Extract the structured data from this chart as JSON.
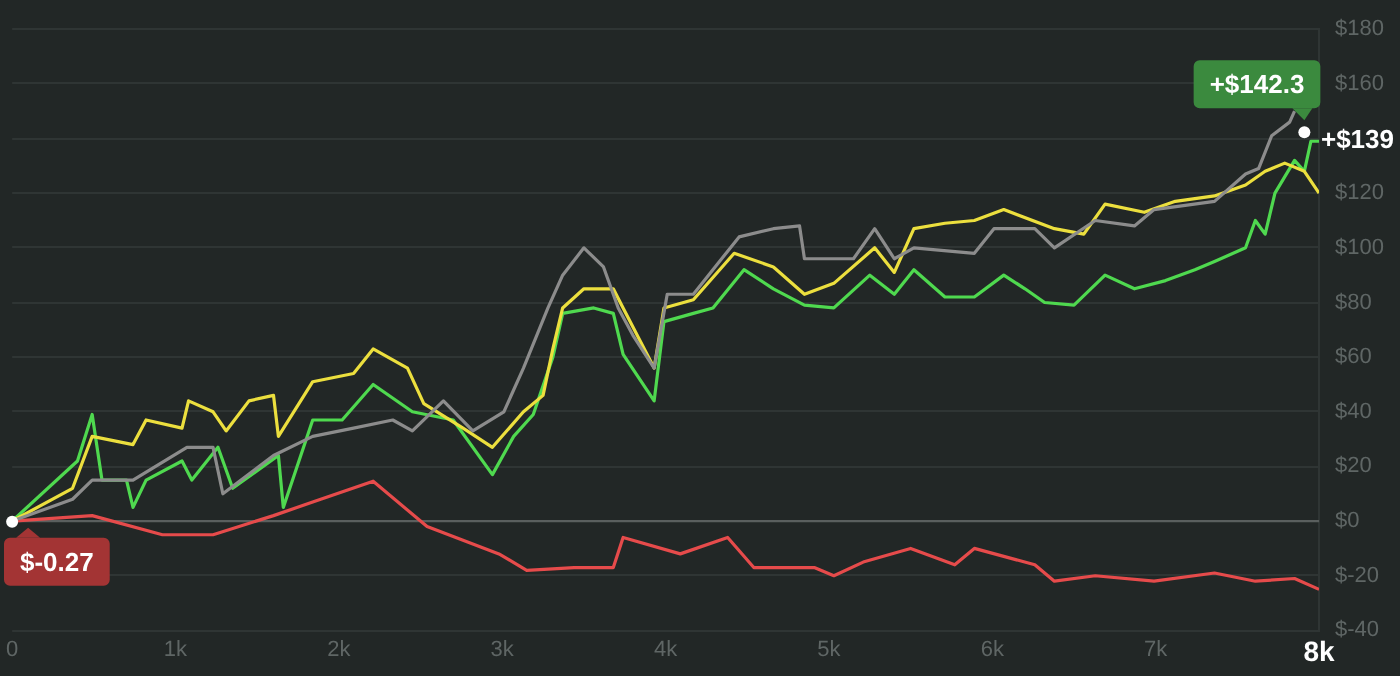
{
  "chart_data": {
    "type": "line",
    "xlim": [
      0,
      8000
    ],
    "xticks": [
      {
        "value": 0,
        "label": "0"
      },
      {
        "value": 1000,
        "label": "1k"
      },
      {
        "value": 2000,
        "label": "2k"
      },
      {
        "value": 3000,
        "label": "3k"
      },
      {
        "value": 4000,
        "label": "4k"
      },
      {
        "value": 5000,
        "label": "5k"
      },
      {
        "value": 6000,
        "label": "6k"
      },
      {
        "value": 7000,
        "label": "7k"
      },
      {
        "value": 8000,
        "label": "8k"
      }
    ],
    "ylim": [
      -40,
      180
    ],
    "yticks": [
      {
        "value": -40,
        "label": "$-40"
      },
      {
        "value": -20,
        "label": "$-20"
      },
      {
        "value": 0,
        "label": "$0"
      },
      {
        "value": 20,
        "label": "$20"
      },
      {
        "value": 40,
        "label": "$40"
      },
      {
        "value": 60,
        "label": "$60"
      },
      {
        "value": 80,
        "label": "$80"
      },
      {
        "value": 100,
        "label": "$100"
      },
      {
        "value": 120,
        "label": "$120"
      },
      {
        "value": 140,
        "label": null
      },
      {
        "value": 160,
        "label": "$160"
      },
      {
        "value": 180,
        "label": "$180"
      }
    ],
    "grid": "y",
    "legend": false,
    "marker": "none",
    "ref_lines": [
      {
        "axis": "y",
        "value": 0,
        "color": "#5a5f5e"
      }
    ],
    "annotations": [
      {
        "text": "+$142.3",
        "x": 7910,
        "y": 142.3
      },
      {
        "text": "+$139",
        "x": 8000,
        "y": 139
      },
      {
        "text": "$-0.27",
        "x": 0,
        "y": -0.27
      }
    ],
    "series": [
      {
        "color": "#8c8c8c",
        "x": [
          0,
          370,
          490,
          740,
          1070,
          1230,
          1290,
          1600,
          1840,
          2090,
          2330,
          2450,
          2640,
          2820,
          3010,
          3130,
          3280,
          3370,
          3500,
          3620,
          3710,
          3800,
          3930,
          4010,
          4170,
          4450,
          4660,
          4820,
          4850,
          5150,
          5280,
          5400,
          5520,
          5890,
          6010,
          6260,
          6380,
          6630,
          6870,
          6990,
          7360,
          7550,
          7630,
          7710,
          7820,
          7850
        ],
        "values": [
          0,
          8,
          15,
          15,
          27,
          27,
          10,
          24,
          31,
          34,
          37,
          33,
          44,
          33,
          40,
          56,
          78,
          90,
          100,
          93,
          78,
          68,
          56,
          83,
          83,
          104,
          107,
          108,
          96,
          96,
          107,
          96,
          100,
          98,
          107,
          107,
          100,
          110,
          108,
          114,
          117,
          127,
          129,
          141,
          146,
          150
        ]
      },
      {
        "color": "#ecdf3e",
        "x": [
          0,
          370,
          490,
          740,
          820,
          1040,
          1080,
          1230,
          1310,
          1450,
          1600,
          1630,
          1840,
          2090,
          2210,
          2420,
          2520,
          2760,
          2940,
          3130,
          3250,
          3310,
          3370,
          3500,
          3680,
          3740,
          3930,
          3990,
          4170,
          4420,
          4660,
          4850,
          5030,
          5280,
          5400,
          5520,
          5710,
          5890,
          6070,
          6380,
          6560,
          6690,
          6930,
          7120,
          7360,
          7550,
          7670,
          7790,
          7910,
          8000
        ],
        "values": [
          0,
          12,
          31,
          28,
          37,
          34,
          44,
          40,
          33,
          44,
          46,
          31,
          51,
          54,
          63,
          56,
          43,
          34,
          27,
          40,
          46,
          63,
          78,
          85,
          85,
          78,
          56,
          78,
          81,
          98,
          93,
          83,
          87,
          100,
          91,
          107,
          109,
          110,
          114,
          107,
          105,
          116,
          113,
          117,
          119,
          123,
          128,
          131,
          128,
          120
        ]
      },
      {
        "color": "#4fd94f",
        "x": [
          0,
          400,
          490,
          550,
          700,
          740,
          820,
          1040,
          1100,
          1260,
          1350,
          1630,
          1660,
          1840,
          2020,
          2210,
          2450,
          2700,
          2940,
          3070,
          3190,
          3310,
          3370,
          3560,
          3680,
          3740,
          3930,
          3990,
          4170,
          4290,
          4480,
          4660,
          4850,
          5030,
          5250,
          5400,
          5520,
          5710,
          5890,
          6070,
          6200,
          6320,
          6500,
          6690,
          6870,
          7060,
          7240,
          7360,
          7550,
          7610,
          7670,
          7730,
          7850,
          7910,
          7950,
          8000
        ],
        "values": [
          0,
          22,
          39,
          15,
          15,
          5,
          15,
          22,
          15,
          27,
          12,
          24,
          5,
          37,
          37,
          50,
          40,
          37,
          17,
          31,
          39,
          60,
          76,
          78,
          76,
          61,
          44,
          73,
          76,
          78,
          92,
          85,
          79,
          78,
          90,
          83,
          92,
          82,
          82,
          90,
          85,
          80,
          79,
          90,
          85,
          88,
          92,
          95,
          100,
          110,
          105,
          120,
          132,
          128,
          139,
          139
        ]
      },
      {
        "color": "#e64b4b",
        "x": [
          0,
          490,
          920,
          1230,
          1600,
          1840,
          2210,
          2540,
          2980,
          3150,
          3440,
          3680,
          3740,
          4090,
          4380,
          4540,
          4910,
          5030,
          5210,
          5500,
          5770,
          5890,
          6260,
          6380,
          6630,
          6990,
          7360,
          7610,
          7850,
          8000
        ],
        "values": [
          0,
          2,
          -5,
          -5,
          2,
          7,
          14.6,
          -2,
          -12,
          -18,
          -17,
          -17,
          -6,
          -12,
          -6,
          -17,
          -17,
          -20,
          -15,
          -10,
          -16,
          -10,
          -16,
          -22,
          -20,
          -22,
          -19,
          -22,
          -21,
          -25
        ]
      }
    ]
  }
}
